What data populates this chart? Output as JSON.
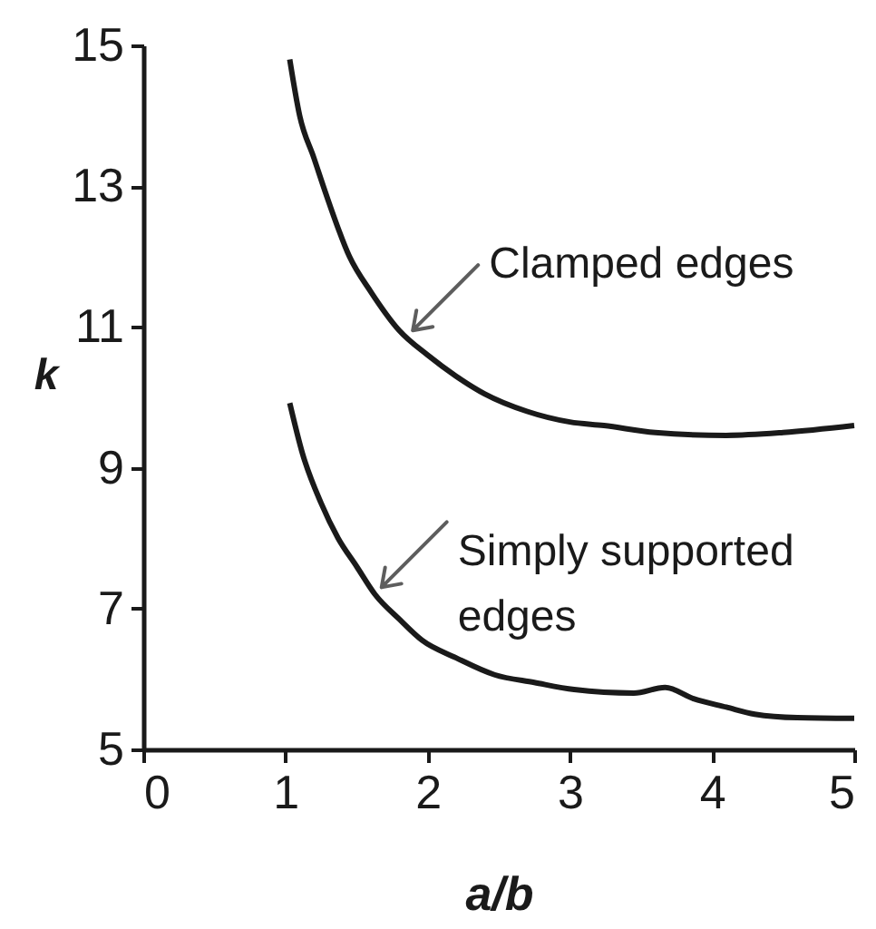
{
  "chart_data": {
    "type": "line",
    "xlabel": "a/b",
    "ylabel": "k",
    "xlim": [
      0,
      5
    ],
    "ylim": [
      5,
      15
    ],
    "xticks": [
      0,
      1,
      2,
      3,
      4,
      5
    ],
    "yticks": [
      5,
      7,
      9,
      11,
      13,
      15
    ],
    "grid": false,
    "marker": "none",
    "line_style": "solid",
    "series": [
      {
        "color": "#1a1a1a",
        "x": [
          1.03,
          1.1,
          1.2,
          1.3,
          1.45,
          1.6,
          1.8,
          2.0,
          2.2,
          2.4,
          2.7,
          3.0,
          3.24,
          3.6,
          4.1,
          4.5,
          5.0
        ],
        "values": [
          14.8,
          14.0,
          13.4,
          12.8,
          12.0,
          11.5,
          10.95,
          10.6,
          10.3,
          10.05,
          9.8,
          9.65,
          9.6,
          9.5,
          9.46,
          9.5,
          9.6
        ]
      },
      {
        "color": "#1a1a1a",
        "x": [
          1.03,
          1.12,
          1.25,
          1.37,
          1.5,
          1.63,
          1.8,
          1.96,
          2.2,
          2.47,
          2.75,
          3.03,
          3.45,
          3.67,
          3.87,
          4.1,
          4.3,
          4.6,
          5.0
        ],
        "values": [
          9.92,
          9.2,
          8.5,
          8.0,
          7.6,
          7.2,
          6.85,
          6.55,
          6.3,
          6.06,
          5.95,
          5.85,
          5.8,
          5.88,
          5.72,
          5.6,
          5.5,
          5.45,
          5.44
        ]
      }
    ],
    "annotations": [
      {
        "text": "Clamped edges",
        "x": 1.87,
        "y": 10.9
      },
      {
        "text": "Simply supported\nedges",
        "x": 1.65,
        "y": 7.25
      }
    ]
  }
}
